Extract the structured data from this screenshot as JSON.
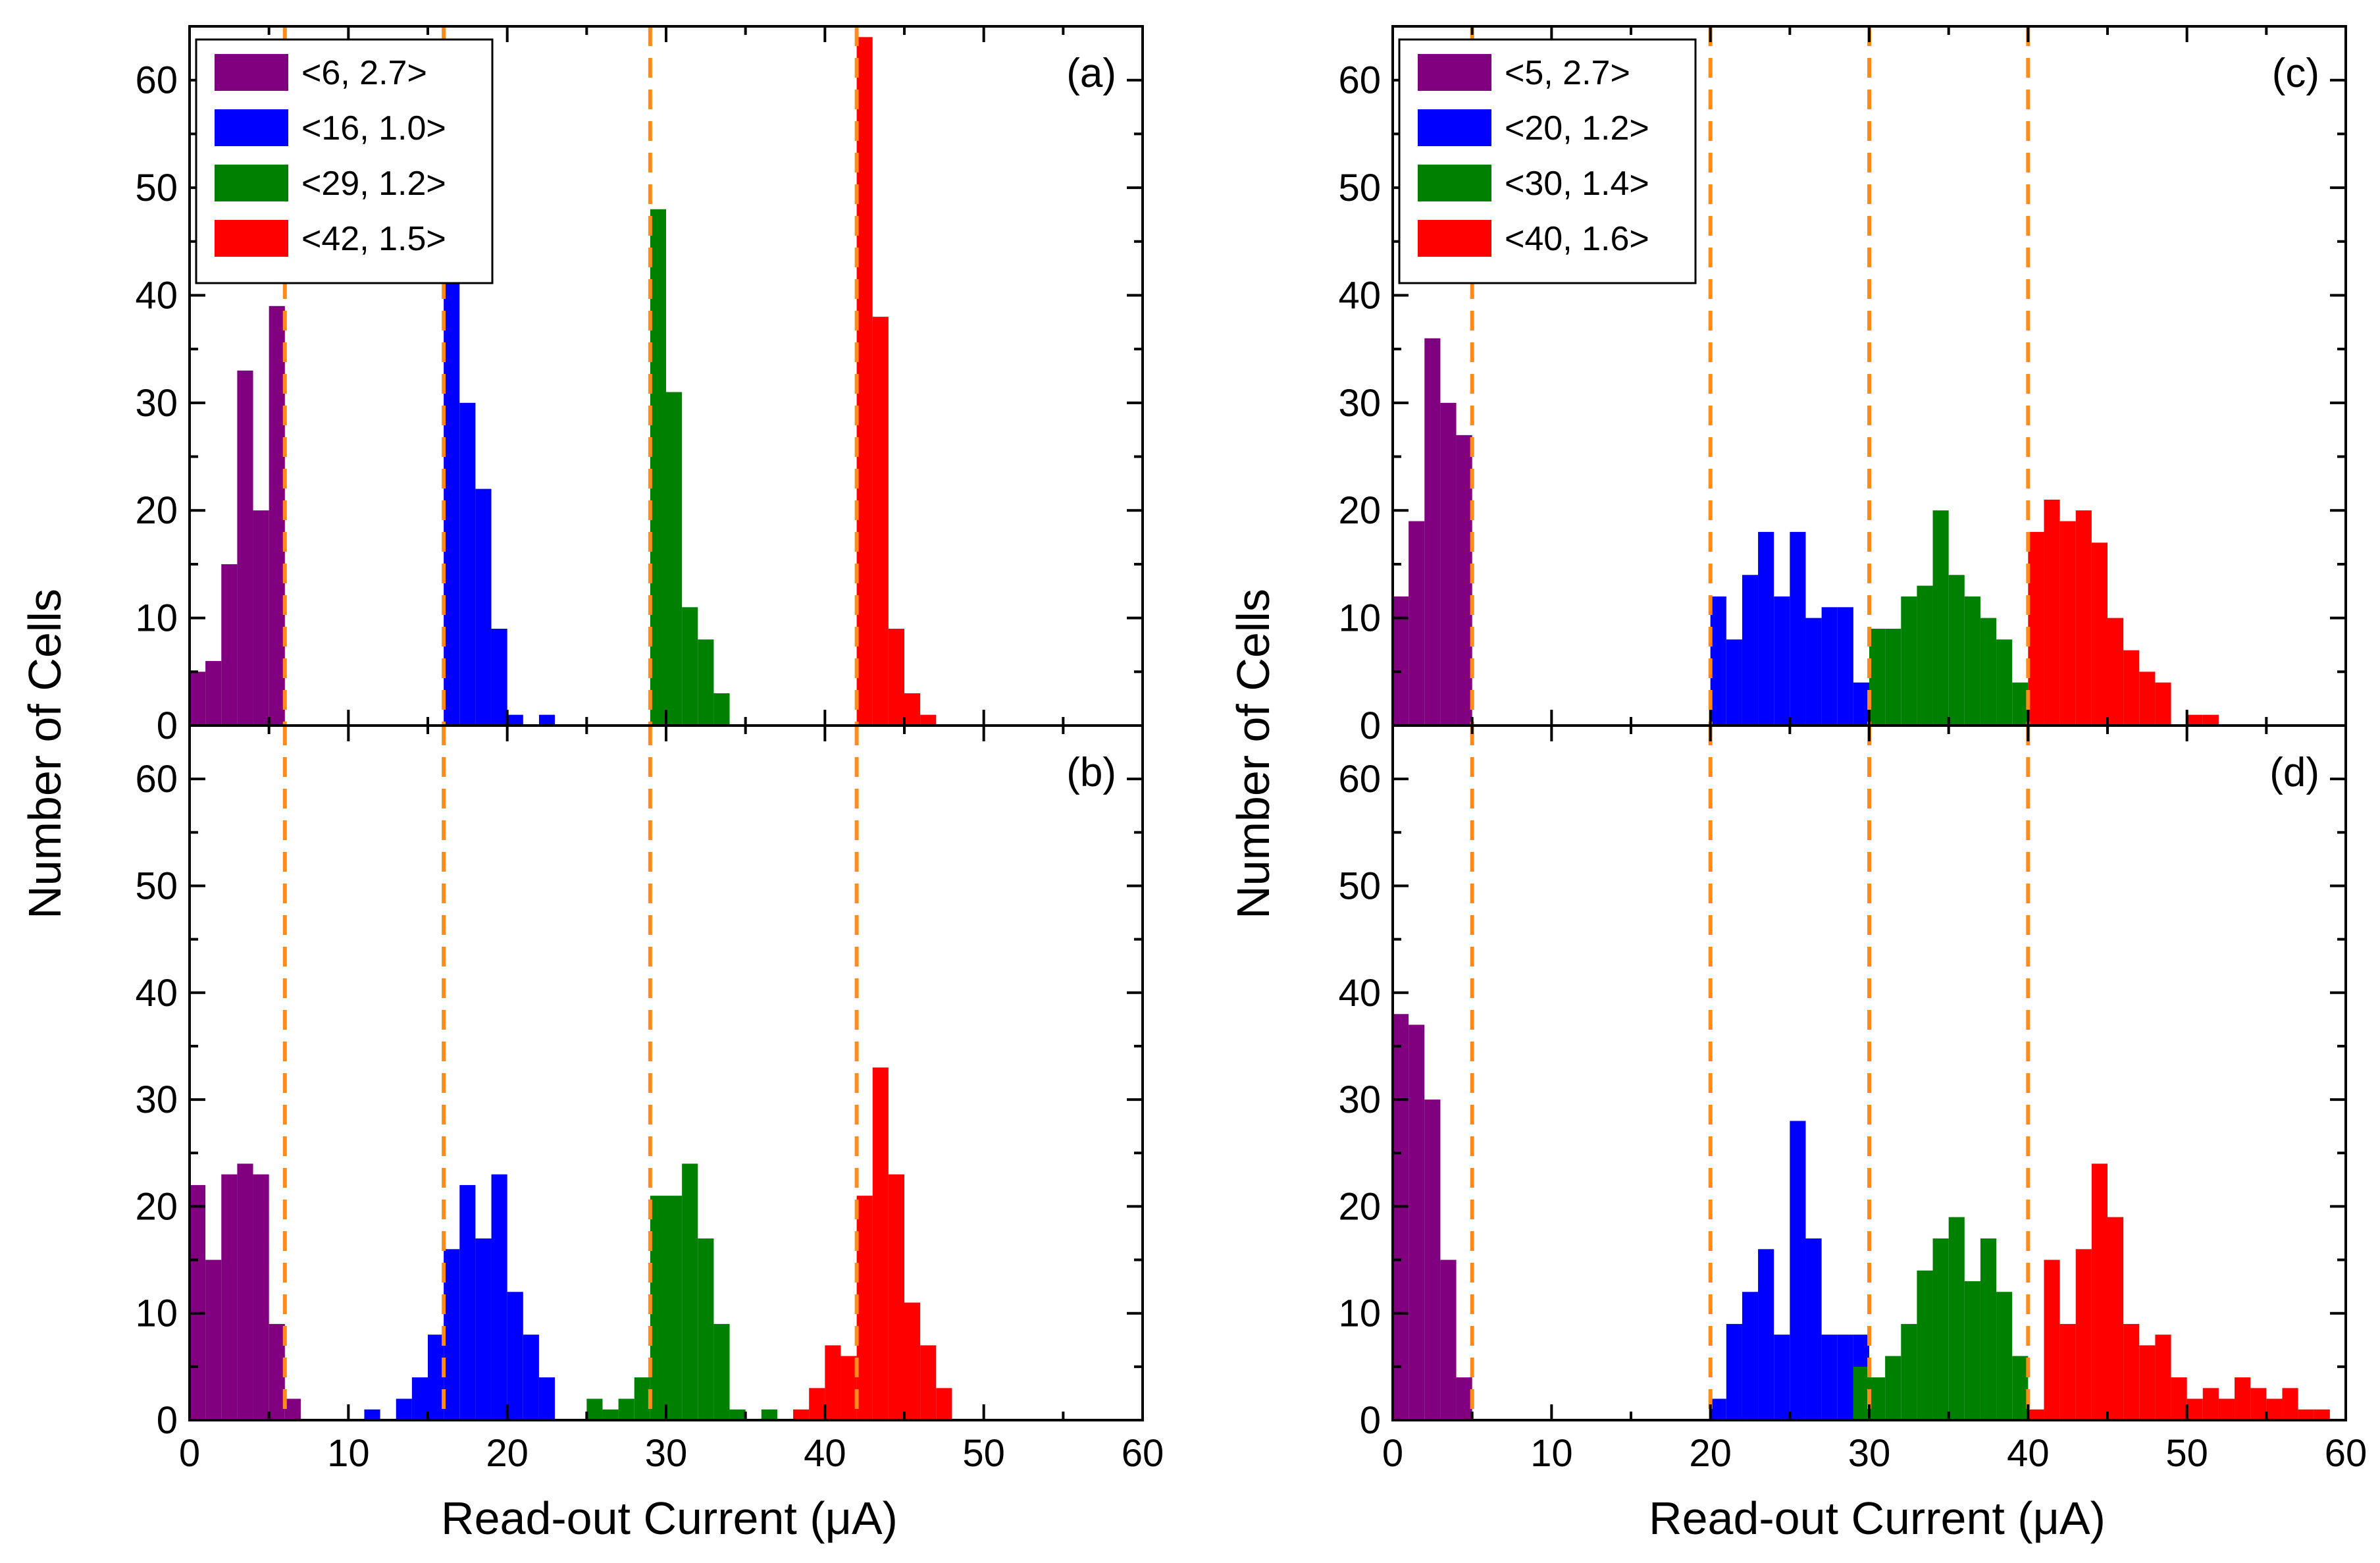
{
  "figure": {
    "ylabel_left": "Number of Cells",
    "ylabel_right": "Number of Cells",
    "xlabel_left": "Read-out Current (μA)",
    "xlabel_right": "Read-out Current (μA)"
  },
  "colors": {
    "purple": "#800080",
    "blue": "#0000ff",
    "green": "#008000",
    "red": "#ff0000",
    "dashed": "#ff8c1a",
    "axis": "#000000"
  },
  "legend_left": [
    "<6, 2.7>",
    "<16, 1.0>",
    "<29, 1.2>",
    "<42, 1.5>"
  ],
  "legend_right": [
    "<5, 2.7>",
    "<20, 1.2>",
    "<30, 1.4>",
    "<40, 1.6>"
  ],
  "chart_data": [
    {
      "type": "bar",
      "panel": "(a)",
      "xlabel": "",
      "ylabel": "Number of Cells",
      "xlim": [
        0,
        60
      ],
      "ylim": [
        0,
        65
      ],
      "xticks": [
        0,
        10,
        20,
        30,
        40,
        50,
        60
      ],
      "yticks": [
        0,
        10,
        20,
        30,
        40,
        50,
        60
      ],
      "bin_width": 1,
      "threshold_lines": [
        6,
        16,
        29,
        42
      ],
      "series": [
        {
          "name": "<6, 2.7>",
          "color": "purple",
          "x": [
            0,
            1,
            2,
            3,
            4,
            5
          ],
          "values": [
            5,
            6,
            15,
            33,
            20,
            39
          ]
        },
        {
          "name": "<16, 1.0>",
          "color": "blue",
          "x": [
            16,
            17,
            18,
            19,
            20,
            22
          ],
          "values": [
            42,
            30,
            22,
            9,
            1,
            1
          ]
        },
        {
          "name": "<29, 1.2>",
          "color": "green",
          "x": [
            29,
            30,
            31,
            32,
            33
          ],
          "values": [
            48,
            31,
            11,
            8,
            3
          ]
        },
        {
          "name": "<42, 1.5>",
          "color": "red",
          "x": [
            42,
            43,
            44,
            45,
            46
          ],
          "values": [
            64,
            38,
            9,
            3,
            1
          ]
        }
      ]
    },
    {
      "type": "bar",
      "panel": "(b)",
      "xlabel": "Read-out Current (μA)",
      "ylabel": "Number of Cells",
      "xlim": [
        0,
        60
      ],
      "ylim": [
        0,
        65
      ],
      "xticks": [
        0,
        10,
        20,
        30,
        40,
        50,
        60
      ],
      "yticks": [
        0,
        10,
        20,
        30,
        40,
        50,
        60
      ],
      "bin_width": 1,
      "threshold_lines": [
        6,
        16,
        29,
        42
      ],
      "series": [
        {
          "name": "<6, 2.7>",
          "color": "purple",
          "x": [
            0,
            1,
            2,
            3,
            4,
            5,
            6
          ],
          "values": [
            22,
            15,
            23,
            24,
            23,
            9,
            2
          ]
        },
        {
          "name": "<16, 1.0>",
          "color": "blue",
          "x": [
            11,
            13,
            14,
            15,
            16,
            17,
            18,
            19,
            20,
            21,
            22
          ],
          "values": [
            1,
            2,
            4,
            8,
            16,
            22,
            17,
            23,
            12,
            8,
            4
          ]
        },
        {
          "name": "<29, 1.2>",
          "color": "green",
          "x": [
            25,
            26,
            27,
            28,
            29,
            30,
            31,
            32,
            33,
            34,
            36
          ],
          "values": [
            2,
            1,
            2,
            4,
            21,
            21,
            24,
            17,
            9,
            1,
            1
          ]
        },
        {
          "name": "<42, 1.5>",
          "color": "red",
          "x": [
            38,
            39,
            40,
            41,
            42,
            43,
            44,
            45,
            46,
            47
          ],
          "values": [
            1,
            3,
            7,
            6,
            21,
            33,
            23,
            11,
            7,
            3
          ]
        }
      ]
    },
    {
      "type": "bar",
      "panel": "(c)",
      "xlabel": "",
      "ylabel": "Number of Cells",
      "xlim": [
        0,
        60
      ],
      "ylim": [
        0,
        65
      ],
      "xticks": [
        0,
        10,
        20,
        30,
        40,
        50,
        60
      ],
      "yticks": [
        0,
        10,
        20,
        30,
        40,
        50,
        60
      ],
      "bin_width": 1,
      "threshold_lines": [
        5,
        20,
        30,
        40
      ],
      "series": [
        {
          "name": "<5, 2.7>",
          "color": "purple",
          "x": [
            0,
            1,
            2,
            3,
            4
          ],
          "values": [
            12,
            19,
            36,
            30,
            27
          ]
        },
        {
          "name": "<20, 1.2>",
          "color": "blue",
          "x": [
            20,
            21,
            22,
            23,
            24,
            25,
            26,
            27,
            28,
            29
          ],
          "values": [
            12,
            8,
            14,
            18,
            12,
            18,
            10,
            11,
            11,
            4
          ]
        },
        {
          "name": "<30, 1.4>",
          "color": "green",
          "x": [
            30,
            31,
            32,
            33,
            34,
            35,
            36,
            37,
            38,
            39
          ],
          "values": [
            9,
            9,
            12,
            13,
            20,
            14,
            12,
            10,
            8,
            4
          ]
        },
        {
          "name": "<40, 1.6>",
          "color": "red",
          "x": [
            40,
            41,
            42,
            43,
            44,
            45,
            46,
            47,
            48,
            49,
            50,
            51
          ],
          "values": [
            18,
            21,
            19,
            20,
            17,
            10,
            7,
            5,
            4,
            0,
            1,
            1
          ]
        }
      ]
    },
    {
      "type": "bar",
      "panel": "(d)",
      "xlabel": "Read-out Current (μA)",
      "ylabel": "Number of Cells",
      "xlim": [
        0,
        60
      ],
      "ylim": [
        0,
        65
      ],
      "xticks": [
        0,
        10,
        20,
        30,
        40,
        50,
        60
      ],
      "yticks": [
        0,
        10,
        20,
        30,
        40,
        50,
        60
      ],
      "bin_width": 1,
      "threshold_lines": [
        5,
        20,
        30,
        40
      ],
      "series": [
        {
          "name": "<5, 2.7>",
          "color": "purple",
          "x": [
            0,
            1,
            2,
            3,
            4
          ],
          "values": [
            38,
            37,
            30,
            15,
            4
          ]
        },
        {
          "name": "<20, 1.2>",
          "color": "blue",
          "x": [
            20,
            21,
            22,
            23,
            24,
            25,
            26,
            27,
            28,
            29
          ],
          "values": [
            2,
            9,
            12,
            16,
            8,
            28,
            17,
            8,
            8,
            8
          ]
        },
        {
          "name": "<30, 1.4>",
          "color": "green",
          "x": [
            29,
            30,
            31,
            32,
            33,
            34,
            35,
            36,
            37,
            38,
            39
          ],
          "values": [
            5,
            4,
            6,
            9,
            14,
            17,
            19,
            13,
            17,
            12,
            6
          ]
        },
        {
          "name": "<40, 1.6>",
          "color": "red",
          "x": [
            40,
            41,
            42,
            43,
            44,
            45,
            46,
            47,
            48,
            49,
            50,
            51,
            52,
            53,
            54,
            55,
            56,
            57,
            58
          ],
          "values": [
            1,
            15,
            9,
            16,
            24,
            19,
            9,
            7,
            8,
            4,
            2,
            3,
            2,
            4,
            3,
            2,
            3,
            1,
            1
          ]
        }
      ]
    }
  ]
}
